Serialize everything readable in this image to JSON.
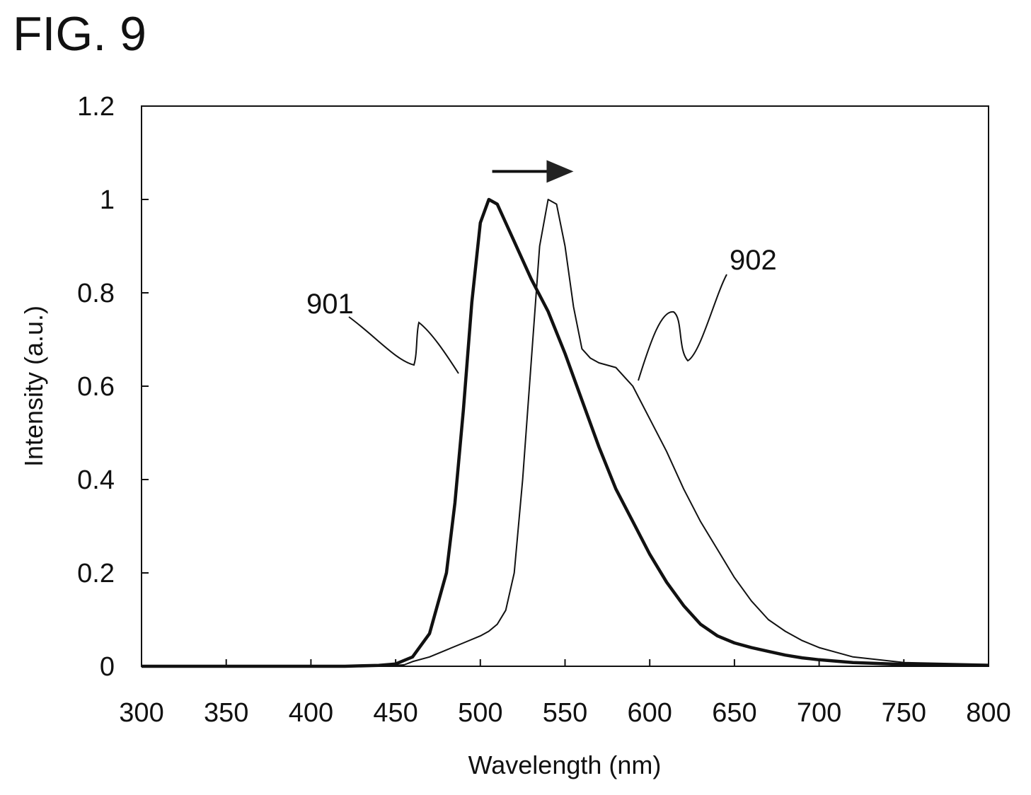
{
  "figure": {
    "title": "FIG. 9"
  },
  "chart_data": {
    "type": "line",
    "title": "",
    "xlabel": "Wavelength (nm)",
    "ylabel": "Intensity (a.u.)",
    "xlim": [
      300,
      800
    ],
    "ylim": [
      0,
      1.2
    ],
    "x_ticks": [
      "300",
      "350",
      "400",
      "450",
      "500",
      "550",
      "600",
      "650",
      "700",
      "750",
      "800"
    ],
    "y_ticks": [
      "0",
      "0.2",
      "0.4",
      "0.6",
      "0.8",
      "1",
      "1.2"
    ],
    "grid": false,
    "legend": "none",
    "series": [
      {
        "name": "901",
        "color": "#111111",
        "x": [
          300,
          420,
          440,
          450,
          460,
          470,
          480,
          485,
          490,
          495,
          500,
          505,
          510,
          515,
          520,
          530,
          540,
          550,
          560,
          570,
          580,
          590,
          600,
          610,
          620,
          630,
          640,
          650,
          660,
          670,
          680,
          690,
          700,
          720,
          750,
          800
        ],
        "y": [
          0,
          0,
          0.002,
          0.005,
          0.02,
          0.07,
          0.2,
          0.35,
          0.55,
          0.78,
          0.95,
          1.0,
          0.99,
          0.95,
          0.91,
          0.83,
          0.76,
          0.67,
          0.57,
          0.47,
          0.38,
          0.31,
          0.24,
          0.18,
          0.13,
          0.09,
          0.065,
          0.05,
          0.04,
          0.032,
          0.024,
          0.018,
          0.014,
          0.008,
          0.004,
          0.002
        ]
      },
      {
        "name": "902",
        "color": "#111111",
        "x": [
          300,
          440,
          455,
          460,
          470,
          480,
          490,
          500,
          505,
          510,
          515,
          520,
          525,
          530,
          535,
          540,
          545,
          550,
          555,
          560,
          565,
          570,
          580,
          585,
          590,
          600,
          610,
          620,
          630,
          640,
          650,
          660,
          670,
          680,
          690,
          700,
          710,
          720,
          750,
          800
        ],
        "y": [
          0,
          0,
          0.003,
          0.01,
          0.02,
          0.035,
          0.05,
          0.065,
          0.075,
          0.09,
          0.12,
          0.2,
          0.4,
          0.65,
          0.9,
          1.0,
          0.99,
          0.9,
          0.77,
          0.68,
          0.66,
          0.65,
          0.64,
          0.62,
          0.6,
          0.53,
          0.46,
          0.38,
          0.31,
          0.25,
          0.19,
          0.14,
          0.1,
          0.075,
          0.055,
          0.04,
          0.03,
          0.02,
          0.008,
          0.004
        ]
      }
    ],
    "annotations": [
      {
        "label": "901",
        "series": "901"
      },
      {
        "label": "902",
        "series": "902"
      }
    ],
    "arrow": {
      "from_x": 507,
      "to_x": 555,
      "y": 1.06,
      "meaning": "peak shift"
    }
  }
}
